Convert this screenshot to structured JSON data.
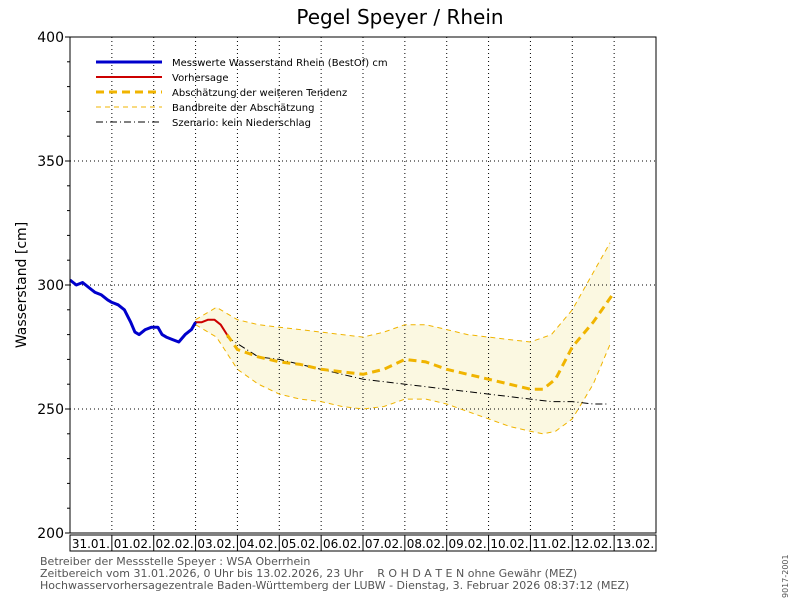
{
  "chart_data": {
    "type": "line",
    "title": "Pegel Speyer / Rhein",
    "ylabel": "Wasserstand [cm]",
    "xlabel": "",
    "ylim": [
      200,
      400
    ],
    "yticks": [
      200,
      250,
      300,
      350,
      400
    ],
    "grid": true,
    "legend_position": "top-left",
    "x_range_days": [
      "31.01.2026 00:00",
      "13.02.2026 23:00"
    ],
    "x_tick_labels": [
      "31.01.",
      "01.02.",
      "02.02.",
      "03.02.",
      "04.02.",
      "05.02.",
      "06.02.",
      "07.02.",
      "08.02.",
      "09.02.",
      "10.02.",
      "11.02.",
      "12.02.",
      "13.02."
    ],
    "legend": [
      "Messwerte Wasserstand Rhein (BestOf)   cm",
      "Vorhersage",
      "Abschätzung der weiteren Tendenz",
      "Bandbreite der Abschätzung",
      "Szenario: kein Niederschlag"
    ],
    "series": [
      {
        "name": "Messwerte Wasserstand Rhein (BestOf)   cm",
        "color": "#0000cc",
        "style": "solid-thick",
        "x_day": [
          0.0,
          0.15,
          0.3,
          0.45,
          0.6,
          0.75,
          0.9,
          1.0,
          1.15,
          1.3,
          1.45,
          1.55,
          1.65,
          1.8,
          1.95,
          2.1,
          2.2,
          2.3,
          2.45,
          2.6,
          2.75,
          2.9,
          3.0
        ],
        "y": [
          302,
          300,
          301,
          299,
          297,
          296,
          294,
          293,
          292,
          290,
          285,
          281,
          280,
          282,
          283,
          283,
          280,
          279,
          278,
          277,
          280,
          282,
          285
        ]
      },
      {
        "name": "Vorhersage",
        "color": "#cc0000",
        "style": "solid",
        "x_day": [
          3.0,
          3.15,
          3.3,
          3.45,
          3.6,
          3.75
        ],
        "y": [
          285,
          285,
          286,
          286,
          284,
          280
        ]
      },
      {
        "name": "Abschätzung der weiteren Tendenz",
        "color": "#f0b400",
        "style": "dashed-thick",
        "x_day": [
          3.75,
          4.0,
          4.5,
          5.0,
          5.5,
          6.0,
          6.5,
          7.0,
          7.5,
          8.0,
          8.5,
          9.0,
          9.5,
          10.0,
          10.5,
          11.0,
          11.3,
          11.6,
          12.0,
          12.5,
          13.0
        ],
        "y": [
          280,
          274,
          271,
          269,
          268,
          266,
          265,
          264,
          266,
          270,
          269,
          266,
          264,
          262,
          260,
          258,
          258,
          262,
          275,
          285,
          297
        ]
      },
      {
        "name": "Bandbreite der Abschätzung (oben)",
        "color": "#f0b400",
        "style": "dashed-thin",
        "x_day": [
          3.0,
          3.5,
          4.0,
          4.5,
          5.0,
          5.5,
          6.0,
          6.5,
          7.0,
          7.5,
          8.0,
          8.5,
          9.0,
          9.5,
          10.0,
          10.5,
          11.0,
          11.5,
          12.0,
          12.5,
          12.9
        ],
        "y": [
          286,
          291,
          286,
          284,
          283,
          282,
          281,
          280,
          279,
          281,
          284,
          284,
          282,
          280,
          279,
          278,
          277,
          280,
          290,
          305,
          317
        ]
      },
      {
        "name": "Bandbreite der Abschätzung (unten)",
        "color": "#f0b400",
        "style": "dashed-thin",
        "x_day": [
          3.0,
          3.5,
          4.0,
          4.5,
          5.0,
          5.5,
          6.0,
          6.5,
          7.0,
          7.5,
          8.0,
          8.5,
          9.0,
          9.5,
          10.0,
          10.5,
          11.0,
          11.3,
          11.6,
          12.0,
          12.5,
          12.9
        ],
        "y": [
          284,
          279,
          266,
          260,
          256,
          254,
          253,
          251,
          250,
          251,
          254,
          254,
          252,
          249,
          246,
          243,
          241,
          240,
          241,
          246,
          260,
          276
        ]
      },
      {
        "name": "Szenario: kein Niederschlag",
        "color": "#000000",
        "style": "dash-dot",
        "x_day": [
          3.75,
          4.5,
          5.0,
          5.5,
          6.0,
          6.5,
          7.0,
          7.5,
          8.0,
          8.5,
          9.0,
          9.5,
          10.0,
          10.5,
          11.0,
          11.5,
          12.0,
          12.5,
          12.85
        ],
        "y": [
          279,
          271,
          270,
          268,
          266,
          264,
          262,
          261,
          260,
          259,
          258,
          257,
          256,
          255,
          254,
          253,
          253,
          252,
          252
        ]
      }
    ]
  },
  "footer": {
    "line1": "Betreiber der Messstelle Speyer : WSA Oberrhein",
    "line2": "Zeitbereich vom 31.01.2026, 0 Uhr bis 13.02.2026, 23 Uhr    R O H D A T E N ohne Gewähr (MEZ)",
    "line3": "Hochwasservorhersagezentrale Baden-Württemberg der LUBW - Dienstag, 3. Februar 2026 08:37:12 (MEZ)"
  },
  "side_id": "9017-2001",
  "colors": {
    "measured": "#0000cc",
    "forecast": "#cc0000",
    "tendency": "#f0b400",
    "band_fill": "#fbf8e1",
    "scenario": "#000000"
  }
}
